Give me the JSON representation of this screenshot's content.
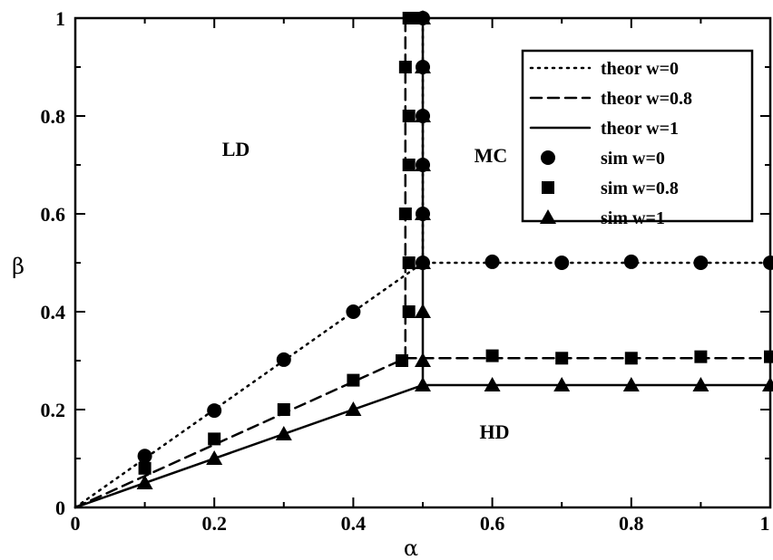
{
  "chart_data": {
    "type": "scatter",
    "xlabel": "α",
    "ylabel": "β",
    "xlim": [
      0,
      1
    ],
    "ylim": [
      0,
      1
    ],
    "x_ticks": [
      "0",
      "0.2",
      "0.4",
      "0.6",
      "0.8",
      "1"
    ],
    "y_ticks": [
      "0",
      "0.2",
      "0.4",
      "0.6",
      "0.8",
      "1"
    ],
    "grid": false,
    "legend_position": "top-right",
    "region_labels": [
      "LD",
      "MC",
      "HD"
    ],
    "series": [
      {
        "name": "theor w=0",
        "kind": "line",
        "style": "dotted",
        "segments": [
          [
            [
              0,
              0
            ],
            [
              0.5,
              0.5
            ],
            [
              1,
              0.5
            ]
          ],
          [
            [
              0.5,
              0.5
            ],
            [
              0.5,
              1
            ]
          ]
        ]
      },
      {
        "name": "theor w=0.8",
        "kind": "line",
        "style": "dashed",
        "segments": [
          [
            [
              0,
              0
            ],
            [
              0.475,
              0.305
            ],
            [
              1,
              0.305
            ]
          ],
          [
            [
              0.475,
              0.305
            ],
            [
              0.475,
              1
            ]
          ]
        ]
      },
      {
        "name": "theor w=1",
        "kind": "line",
        "style": "solid",
        "segments": [
          [
            [
              0,
              0
            ],
            [
              0.5,
              0.25
            ],
            [
              1,
              0.25
            ]
          ],
          [
            [
              0.5,
              0.25
            ],
            [
              0.5,
              1
            ]
          ]
        ]
      },
      {
        "name": "sim w=0",
        "kind": "marker",
        "marker": "circle",
        "points": [
          [
            0.1,
            0.105
          ],
          [
            0.2,
            0.198
          ],
          [
            0.3,
            0.302
          ],
          [
            0.4,
            0.4
          ],
          [
            0.5,
            0.5
          ],
          [
            0.6,
            0.502
          ],
          [
            0.7,
            0.5
          ],
          [
            0.8,
            0.502
          ],
          [
            0.9,
            0.5
          ],
          [
            1.0,
            0.5
          ],
          [
            0.5,
            0.6
          ],
          [
            0.5,
            0.7
          ],
          [
            0.5,
            0.8
          ],
          [
            0.5,
            0.9
          ],
          [
            0.5,
            1.0
          ]
        ]
      },
      {
        "name": "sim w=0.8",
        "kind": "marker",
        "marker": "square",
        "points": [
          [
            0.1,
            0.08
          ],
          [
            0.2,
            0.14
          ],
          [
            0.3,
            0.2
          ],
          [
            0.4,
            0.26
          ],
          [
            0.47,
            0.3
          ],
          [
            0.6,
            0.31
          ],
          [
            0.7,
            0.305
          ],
          [
            0.8,
            0.305
          ],
          [
            0.9,
            0.308
          ],
          [
            1.0,
            0.308
          ],
          [
            0.48,
            0.4
          ],
          [
            0.48,
            0.5
          ],
          [
            0.475,
            0.6
          ],
          [
            0.48,
            0.7
          ],
          [
            0.48,
            0.8
          ],
          [
            0.475,
            0.9
          ],
          [
            0.48,
            1.0
          ],
          [
            0.487,
            1.0
          ]
        ]
      },
      {
        "name": "sim w=1",
        "kind": "marker",
        "marker": "triangle",
        "points": [
          [
            0.1,
            0.05
          ],
          [
            0.2,
            0.1
          ],
          [
            0.3,
            0.15
          ],
          [
            0.4,
            0.2
          ],
          [
            0.5,
            0.25
          ],
          [
            0.6,
            0.25
          ],
          [
            0.7,
            0.25
          ],
          [
            0.8,
            0.25
          ],
          [
            0.9,
            0.25
          ],
          [
            1.0,
            0.25
          ],
          [
            0.5,
            0.3
          ],
          [
            0.5,
            0.4
          ],
          [
            0.5,
            0.5
          ],
          [
            0.5,
            0.6
          ],
          [
            0.5,
            0.7
          ],
          [
            0.5,
            0.8
          ],
          [
            0.5,
            0.9
          ],
          [
            0.5,
            1.0
          ]
        ]
      }
    ]
  }
}
